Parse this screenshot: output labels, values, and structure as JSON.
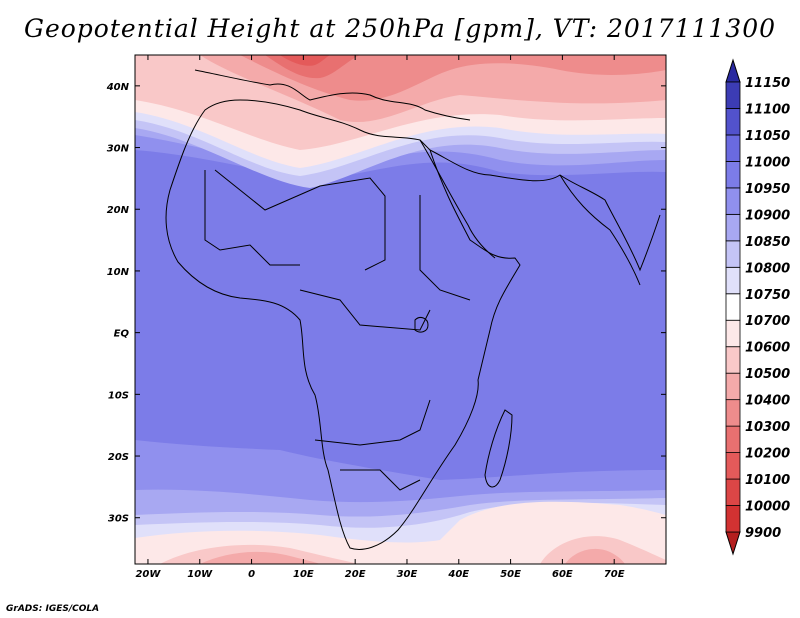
{
  "title": "Geopotential Height at 250hPa [gpm], VT: 2017111300",
  "credit": "GrADS: IGES/COLA",
  "map": {
    "lon_ticks": [
      "20W",
      "10W",
      "0",
      "10E",
      "20E",
      "30E",
      "40E",
      "50E",
      "60E",
      "70E"
    ],
    "lat_ticks": [
      "40N",
      "30N",
      "20N",
      "10N",
      "EQ",
      "10S",
      "20S",
      "30S"
    ]
  },
  "colorbar": {
    "levels": [
      "9900",
      "10000",
      "10100",
      "10200",
      "10300",
      "10400",
      "10500",
      "10600",
      "10700",
      "10750",
      "10800",
      "10850",
      "10900",
      "10950",
      "11000",
      "11050",
      "11100",
      "11150"
    ],
    "colors": [
      "#b41e1e",
      "#d23232",
      "#dc4646",
      "#e45a5a",
      "#e87070",
      "#ee8c8c",
      "#f4aaaa",
      "#f9c8c8",
      "#fde8e8",
      "#ffffff",
      "#e0e0fa",
      "#c4c4f6",
      "#a8a8f2",
      "#9090ee",
      "#7c7ce8",
      "#6a6ae0",
      "#5252cc",
      "#3c3cb4",
      "#2a2aa0"
    ]
  }
}
